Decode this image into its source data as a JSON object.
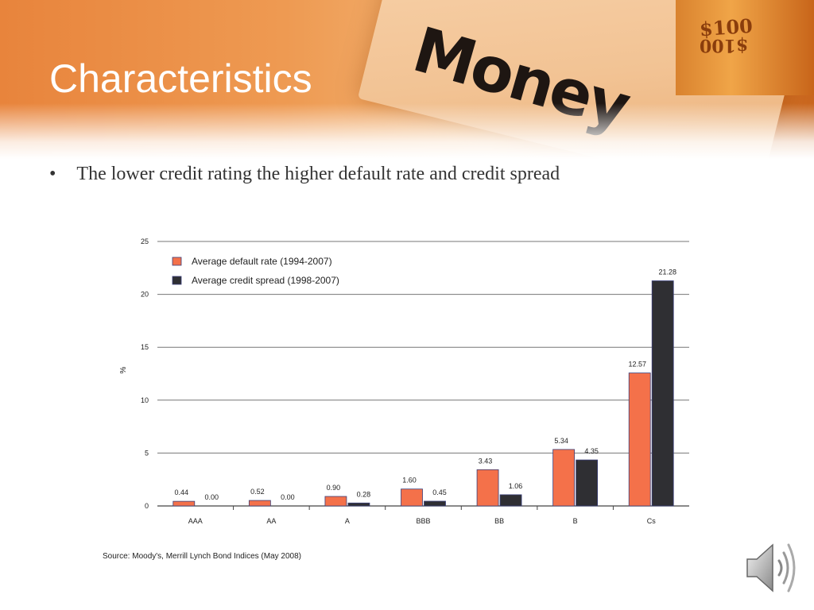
{
  "slide": {
    "title": "Characteristics",
    "bullet_symbol": "•",
    "bullet_text": "The lower credit rating the higher default rate and credit spread",
    "banner_word": "Money",
    "bill_text_1": "$100",
    "bill_text_2": "$100",
    "source": "Source: Moody's, Merrill Lynch Bond Indices (May 2008)",
    "audio_icon": "speaker-icon"
  },
  "colors": {
    "default_rate": "#f4714a",
    "credit_spread": "#2f2f33",
    "bar_outline": "#3a3f7a",
    "gridline": "#777777"
  },
  "chart_data": {
    "type": "bar",
    "categories": [
      "AAA",
      "AA",
      "A",
      "BBB",
      "BB",
      "B",
      "Cs"
    ],
    "series": [
      {
        "name": "Average default rate (1994-2007)",
        "values": [
          0.44,
          0.52,
          0.9,
          1.6,
          3.43,
          5.34,
          12.57
        ],
        "labels": [
          "0.44",
          "0.52",
          "0.90",
          "1.60",
          "3.43",
          "5.34",
          "12.57"
        ]
      },
      {
        "name": "Average credit spread (1998-2007)",
        "values": [
          0.0,
          0.0,
          0.28,
          0.45,
          1.06,
          4.35,
          21.28
        ],
        "labels": [
          "0.00",
          "0.00",
          "0.28",
          "0.45",
          "1.06",
          "4.35",
          "21.28"
        ]
      }
    ],
    "ylabel": "%",
    "ylim": [
      0,
      25
    ],
    "yticks": [
      "0",
      "5",
      "10",
      "15",
      "20",
      "25"
    ],
    "grid": true,
    "legend": "top-left"
  }
}
